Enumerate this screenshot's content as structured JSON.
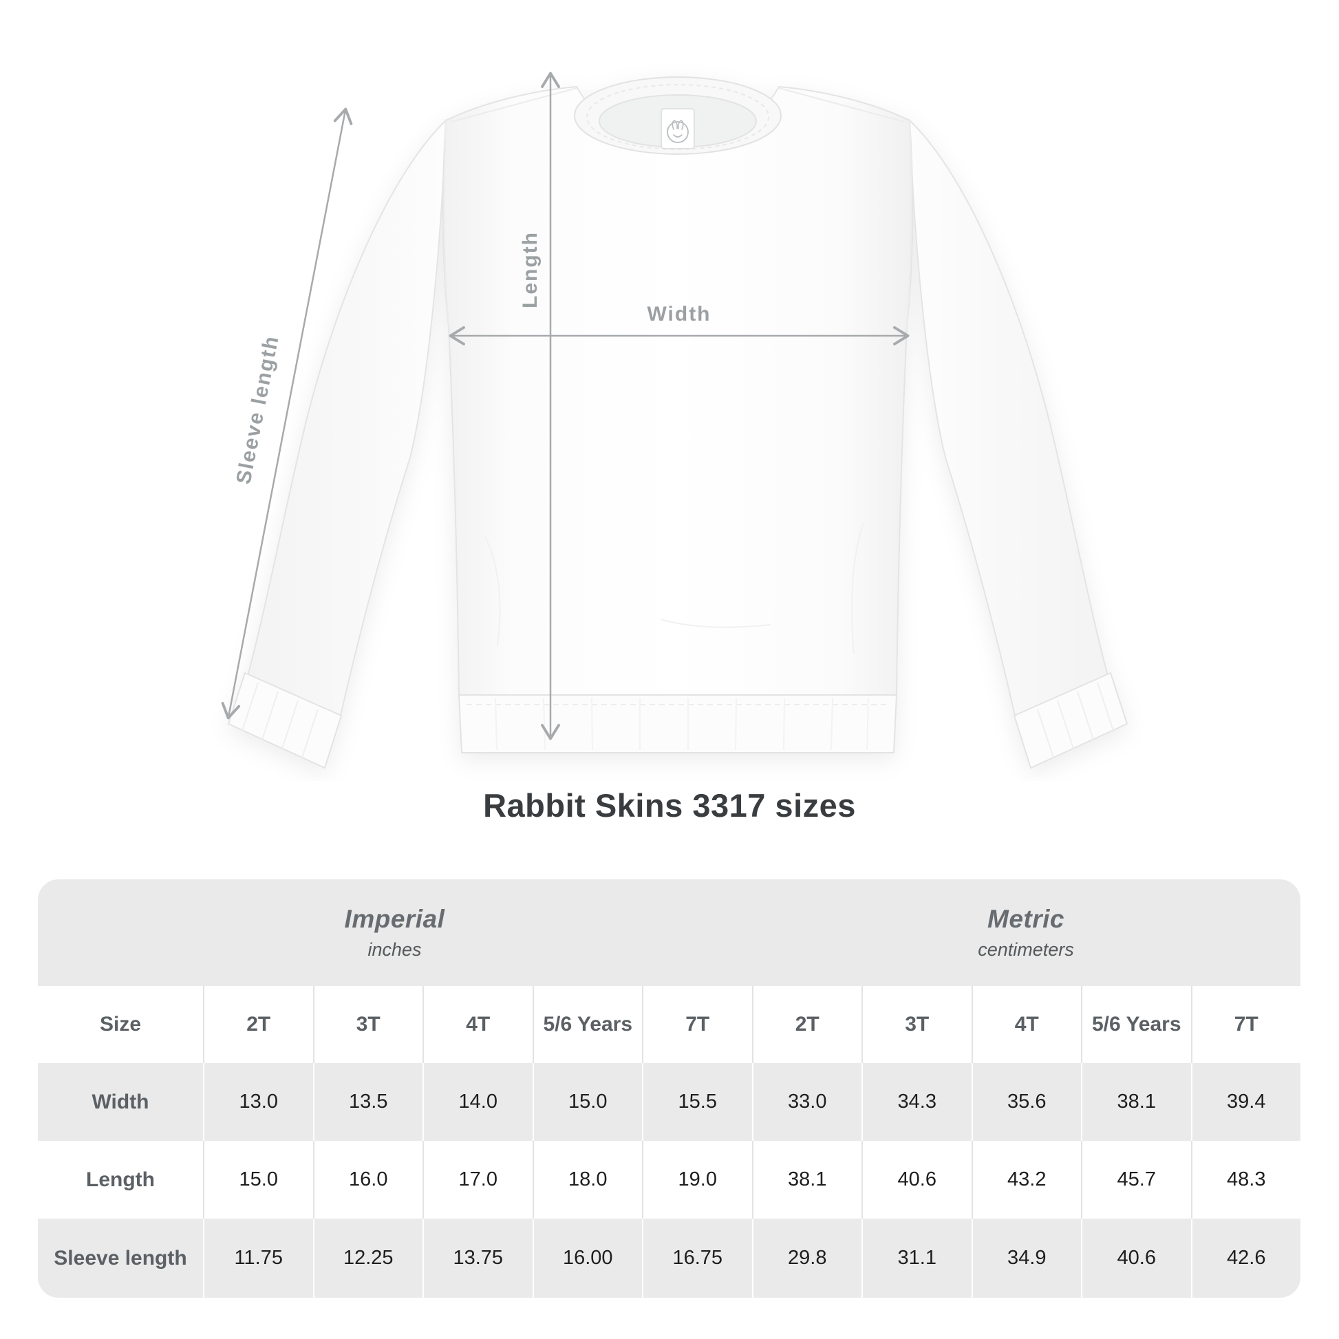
{
  "title": "Rabbit Skins 3317 sizes",
  "diagram": {
    "sleeve_label": "Sleeve length",
    "length_label": "Length",
    "width_label": "Width",
    "arrow_color": "#a7aaad",
    "label_color": "#9ba0a3"
  },
  "table": {
    "units": [
      {
        "name": "Imperial",
        "sub": "inches"
      },
      {
        "name": "Metric",
        "sub": "centimeters"
      }
    ],
    "size_header": "Size",
    "sizes": [
      "2T",
      "3T",
      "4T",
      "5/6 Years",
      "7T"
    ],
    "rows": [
      {
        "label": "Width",
        "imperial": [
          "13.0",
          "13.5",
          "14.0",
          "15.0",
          "15.5"
        ],
        "metric": [
          "33.0",
          "34.3",
          "35.6",
          "38.1",
          "39.4"
        ]
      },
      {
        "label": "Length",
        "imperial": [
          "15.0",
          "16.0",
          "17.0",
          "18.0",
          "19.0"
        ],
        "metric": [
          "38.1",
          "40.6",
          "43.2",
          "45.7",
          "48.3"
        ]
      },
      {
        "label": "Sleeve length",
        "imperial": [
          "11.75",
          "12.25",
          "13.75",
          "16.00",
          "16.75"
        ],
        "metric": [
          "29.8",
          "31.1",
          "34.9",
          "40.6",
          "42.6"
        ]
      }
    ],
    "colors": {
      "band": "#eaeaea",
      "stripe": "#eaeaea",
      "header_text": "#5b6064",
      "value_text": "#1d1e1f"
    }
  }
}
